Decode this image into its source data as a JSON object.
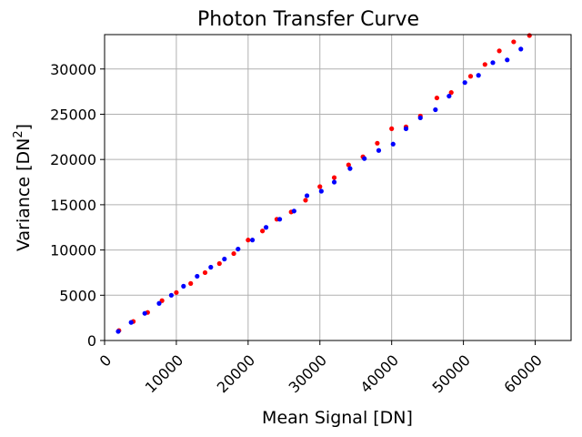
{
  "chart_data": {
    "type": "scatter",
    "title": "Photon Transfer Curve",
    "xlabel": "Mean Signal [DN]",
    "ylabel_main": "Variance [DN",
    "ylabel_sup": "2",
    "ylabel_end": "]",
    "xlim": [
      0,
      65000
    ],
    "ylim": [
      0,
      33800
    ],
    "xticks": [
      0,
      10000,
      20000,
      30000,
      40000,
      50000,
      60000
    ],
    "yticks": [
      0,
      5000,
      10000,
      15000,
      20000,
      25000,
      30000
    ],
    "grid": true,
    "colors": {
      "series_red": "#ff0000",
      "series_blue": "#0000ff"
    },
    "series": [
      {
        "color": "#ff0000",
        "x": [
          2000,
          4000,
          6000,
          8000,
          10000,
          12000,
          14000,
          16000,
          18000,
          20000,
          22000,
          24000,
          26000,
          28000,
          30000,
          32000,
          34000,
          36000,
          38000,
          40000,
          42000,
          44000,
          46300,
          48300,
          51000,
          53000,
          55000,
          57000,
          59200
        ],
        "y": [
          1100,
          2100,
          3100,
          4400,
          5300,
          6300,
          7500,
          8500,
          9600,
          11100,
          12100,
          13400,
          14200,
          15500,
          17000,
          18000,
          19400,
          20300,
          21800,
          23400,
          23600,
          24800,
          26800,
          27400,
          29200,
          30500,
          32000,
          33000,
          33700
        ]
      },
      {
        "color": "#0000ff",
        "x": [
          1900,
          3700,
          5600,
          7600,
          9300,
          11000,
          12900,
          14800,
          16700,
          18600,
          20600,
          22500,
          24400,
          26400,
          28200,
          30200,
          32000,
          34200,
          36200,
          38200,
          40200,
          42000,
          44000,
          46100,
          48000,
          50200,
          52100,
          54100,
          56100,
          58000
        ],
        "y": [
          1000,
          2000,
          3000,
          4100,
          5000,
          6000,
          7100,
          8100,
          9000,
          10100,
          11100,
          12500,
          13400,
          14300,
          16000,
          16500,
          17500,
          19000,
          20100,
          21000,
          21700,
          23400,
          24600,
          25500,
          27000,
          28500,
          29300,
          30700,
          31000,
          32200
        ]
      }
    ]
  }
}
